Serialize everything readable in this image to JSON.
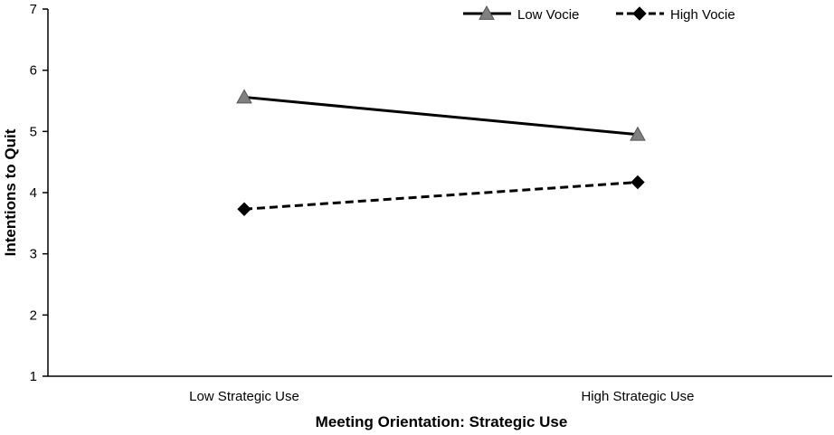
{
  "chart_data": {
    "type": "line",
    "categories": [
      "Low Strategic Use",
      "High Strategic Use"
    ],
    "series": [
      {
        "name": "Low Vocie",
        "values": [
          5.56,
          4.95
        ],
        "color": "#000000",
        "marker": "triangle",
        "marker_color": "#808080",
        "line_style": "solid"
      },
      {
        "name": "High Vocie",
        "values": [
          3.73,
          4.17
        ],
        "color": "#000000",
        "marker": "diamond",
        "marker_color": "#000000",
        "line_style": "dashed"
      }
    ],
    "xlabel": "Meeting Orientation: Strategic Use",
    "ylabel": "Intentions to Quit",
    "ylim": [
      1,
      7
    ],
    "yticks": [
      "1",
      "2",
      "3",
      "4",
      "5",
      "6",
      "7"
    ],
    "grid": false,
    "legend_position": "top-right"
  }
}
